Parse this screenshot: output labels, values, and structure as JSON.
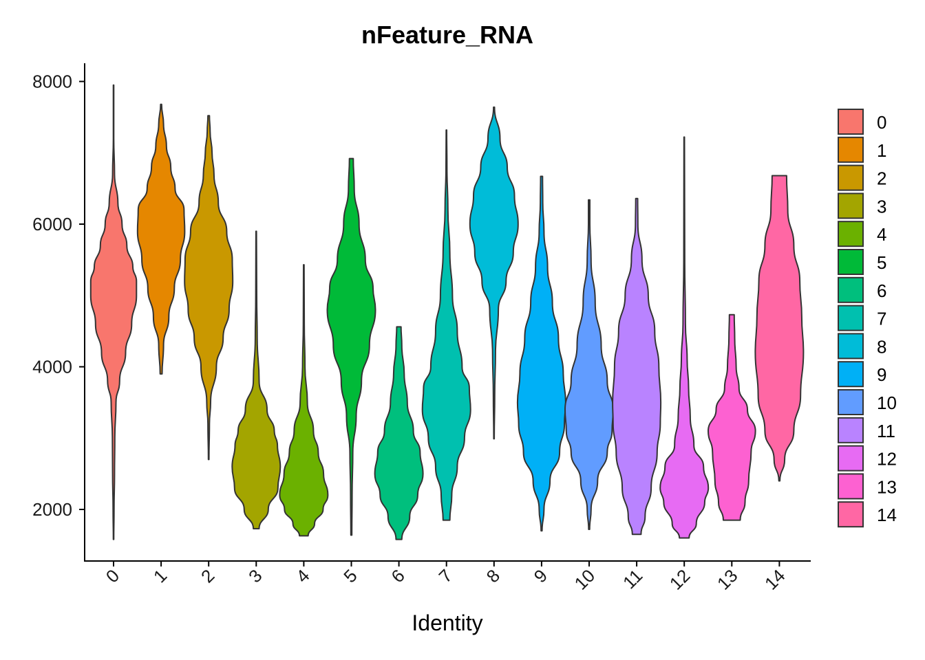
{
  "chart_data": {
    "type": "violin",
    "title": "nFeature_RNA",
    "xlabel": "Identity",
    "ylabel": "",
    "ylim": [
      1300,
      8250
    ],
    "yticks": [
      2000,
      4000,
      6000,
      8000
    ],
    "legend_position": "right",
    "categories": [
      "0",
      "1",
      "2",
      "3",
      "4",
      "5",
      "6",
      "7",
      "8",
      "9",
      "10",
      "11",
      "12",
      "13",
      "14"
    ],
    "series": [
      {
        "name": "0",
        "color": "#F8766D",
        "min": 1580,
        "max": 7950,
        "median": 5000,
        "profile": [
          [
            1580,
            0.01
          ],
          [
            2000,
            0.02
          ],
          [
            2500,
            0.04
          ],
          [
            3000,
            0.05
          ],
          [
            3500,
            0.1
          ],
          [
            3800,
            0.25
          ],
          [
            4200,
            0.5
          ],
          [
            4600,
            0.75
          ],
          [
            5000,
            0.95
          ],
          [
            5200,
            0.95
          ],
          [
            5400,
            0.8
          ],
          [
            5700,
            0.55
          ],
          [
            6000,
            0.35
          ],
          [
            6300,
            0.18
          ],
          [
            6700,
            0.04
          ],
          [
            7200,
            0.01
          ],
          [
            7950,
            0.01
          ]
        ]
      },
      {
        "name": "1",
        "color": "#E58700",
        "min": 3900,
        "max": 7680,
        "median": 5900,
        "profile": [
          [
            3900,
            0.04
          ],
          [
            4300,
            0.1
          ],
          [
            4700,
            0.32
          ],
          [
            5100,
            0.55
          ],
          [
            5500,
            0.8
          ],
          [
            5900,
            0.98
          ],
          [
            6200,
            0.95
          ],
          [
            6500,
            0.58
          ],
          [
            6800,
            0.4
          ],
          [
            7100,
            0.22
          ],
          [
            7400,
            0.1
          ],
          [
            7680,
            0.02
          ]
        ]
      },
      {
        "name": "2",
        "color": "#C99800",
        "min": 2700,
        "max": 7520,
        "median": 5300,
        "profile": [
          [
            2700,
            0.01
          ],
          [
            3200,
            0.03
          ],
          [
            3500,
            0.08
          ],
          [
            4000,
            0.32
          ],
          [
            4400,
            0.6
          ],
          [
            4800,
            0.85
          ],
          [
            5200,
            1.0
          ],
          [
            5500,
            0.98
          ],
          [
            5900,
            0.75
          ],
          [
            6300,
            0.4
          ],
          [
            6700,
            0.22
          ],
          [
            7000,
            0.14
          ],
          [
            7300,
            0.06
          ],
          [
            7520,
            0.03
          ]
        ]
      },
      {
        "name": "3",
        "color": "#A3A500",
        "min": 1730,
        "max": 5900,
        "median": 2600,
        "profile": [
          [
            1730,
            0.12
          ],
          [
            2000,
            0.5
          ],
          [
            2300,
            0.9
          ],
          [
            2600,
            1.0
          ],
          [
            2900,
            0.88
          ],
          [
            3100,
            0.75
          ],
          [
            3400,
            0.45
          ],
          [
            3800,
            0.12
          ],
          [
            4400,
            0.04
          ],
          [
            5000,
            0.02
          ],
          [
            5900,
            0.01
          ]
        ]
      },
      {
        "name": "4",
        "color": "#6BB100",
        "min": 1630,
        "max": 5430,
        "median": 2200,
        "profile": [
          [
            1630,
            0.18
          ],
          [
            1800,
            0.45
          ],
          [
            2000,
            0.8
          ],
          [
            2200,
            1.0
          ],
          [
            2500,
            0.82
          ],
          [
            2800,
            0.6
          ],
          [
            3100,
            0.4
          ],
          [
            3500,
            0.15
          ],
          [
            4000,
            0.05
          ],
          [
            4600,
            0.02
          ],
          [
            5430,
            0.01
          ]
        ]
      },
      {
        "name": "5",
        "color": "#00BA38",
        "min": 1640,
        "max": 6920,
        "median": 4800,
        "profile": [
          [
            1640,
            0.02
          ],
          [
            2200,
            0.03
          ],
          [
            2800,
            0.06
          ],
          [
            3300,
            0.2
          ],
          [
            3800,
            0.42
          ],
          [
            4300,
            0.75
          ],
          [
            4800,
            1.0
          ],
          [
            5100,
            0.9
          ],
          [
            5500,
            0.58
          ],
          [
            6000,
            0.32
          ],
          [
            6500,
            0.12
          ],
          [
            6920,
            0.08
          ]
        ]
      },
      {
        "name": "6",
        "color": "#00BF7D",
        "min": 1580,
        "max": 4560,
        "median": 2600,
        "profile": [
          [
            1580,
            0.12
          ],
          [
            1900,
            0.45
          ],
          [
            2200,
            0.78
          ],
          [
            2500,
            1.0
          ],
          [
            2800,
            0.88
          ],
          [
            3100,
            0.6
          ],
          [
            3500,
            0.35
          ],
          [
            3900,
            0.22
          ],
          [
            4300,
            0.12
          ],
          [
            4560,
            0.09
          ]
        ]
      },
      {
        "name": "7",
        "color": "#00C0AF",
        "min": 1850,
        "max": 7320,
        "median": 3500,
        "profile": [
          [
            1850,
            0.14
          ],
          [
            2200,
            0.22
          ],
          [
            2600,
            0.45
          ],
          [
            3000,
            0.75
          ],
          [
            3400,
            1.0
          ],
          [
            3700,
            0.95
          ],
          [
            4000,
            0.65
          ],
          [
            4500,
            0.45
          ],
          [
            5000,
            0.25
          ],
          [
            5600,
            0.14
          ],
          [
            6200,
            0.06
          ],
          [
            6800,
            0.02
          ],
          [
            7320,
            0.01
          ]
        ]
      },
      {
        "name": "8",
        "color": "#00BCD8",
        "min": 2990,
        "max": 7640,
        "median": 6000,
        "profile": [
          [
            2990,
            0.01
          ],
          [
            3600,
            0.03
          ],
          [
            4200,
            0.06
          ],
          [
            4800,
            0.18
          ],
          [
            5200,
            0.5
          ],
          [
            5600,
            0.8
          ],
          [
            6000,
            1.0
          ],
          [
            6400,
            0.85
          ],
          [
            6800,
            0.55
          ],
          [
            7200,
            0.25
          ],
          [
            7640,
            0.02
          ]
        ]
      },
      {
        "name": "9",
        "color": "#00B0F6",
        "min": 1700,
        "max": 6670,
        "median": 3500,
        "profile": [
          [
            1700,
            0.02
          ],
          [
            2000,
            0.1
          ],
          [
            2400,
            0.35
          ],
          [
            2800,
            0.75
          ],
          [
            3200,
            0.95
          ],
          [
            3500,
            1.0
          ],
          [
            3900,
            0.9
          ],
          [
            4400,
            0.7
          ],
          [
            4900,
            0.45
          ],
          [
            5400,
            0.25
          ],
          [
            5900,
            0.1
          ],
          [
            6300,
            0.05
          ],
          [
            6670,
            0.04
          ]
        ]
      },
      {
        "name": "10",
        "color": "#619CFF",
        "min": 1720,
        "max": 6340,
        "median": 3300,
        "profile": [
          [
            1720,
            0.02
          ],
          [
            2000,
            0.08
          ],
          [
            2400,
            0.35
          ],
          [
            2800,
            0.75
          ],
          [
            3100,
            0.95
          ],
          [
            3400,
            1.0
          ],
          [
            3800,
            0.75
          ],
          [
            4300,
            0.5
          ],
          [
            4900,
            0.25
          ],
          [
            5500,
            0.08
          ],
          [
            6000,
            0.03
          ],
          [
            6340,
            0.03
          ]
        ]
      },
      {
        "name": "11",
        "color": "#B983FF",
        "min": 1650,
        "max": 6360,
        "median": 3000,
        "profile": [
          [
            1650,
            0.18
          ],
          [
            1900,
            0.35
          ],
          [
            2300,
            0.6
          ],
          [
            2800,
            0.85
          ],
          [
            3200,
            0.98
          ],
          [
            3500,
            1.0
          ],
          [
            4000,
            0.92
          ],
          [
            4500,
            0.75
          ],
          [
            5000,
            0.48
          ],
          [
            5500,
            0.22
          ],
          [
            6000,
            0.05
          ],
          [
            6360,
            0.04
          ]
        ]
      },
      {
        "name": "12",
        "color": "#E76BF3",
        "min": 1600,
        "max": 7220,
        "median": 2300,
        "profile": [
          [
            1600,
            0.2
          ],
          [
            1800,
            0.5
          ],
          [
            2100,
            0.85
          ],
          [
            2300,
            1.0
          ],
          [
            2600,
            0.8
          ],
          [
            2900,
            0.4
          ],
          [
            3300,
            0.25
          ],
          [
            3700,
            0.18
          ],
          [
            4100,
            0.12
          ],
          [
            4600,
            0.05
          ],
          [
            5500,
            0.02
          ],
          [
            7220,
            0.01
          ]
        ]
      },
      {
        "name": "13",
        "color": "#FD61D1",
        "min": 1850,
        "max": 4730,
        "median": 3100,
        "profile": [
          [
            1850,
            0.35
          ],
          [
            2100,
            0.55
          ],
          [
            2400,
            0.7
          ],
          [
            2800,
            0.8
          ],
          [
            3100,
            0.98
          ],
          [
            3400,
            0.65
          ],
          [
            3700,
            0.3
          ],
          [
            4000,
            0.18
          ],
          [
            4400,
            0.12
          ],
          [
            4730,
            0.1
          ]
        ]
      },
      {
        "name": "14",
        "color": "#FF67A4",
        "min": 2400,
        "max": 6680,
        "median": 4300,
        "profile": [
          [
            2400,
            0.02
          ],
          [
            2700,
            0.22
          ],
          [
            3100,
            0.6
          ],
          [
            3600,
            0.88
          ],
          [
            4200,
            1.0
          ],
          [
            4700,
            0.93
          ],
          [
            5200,
            0.85
          ],
          [
            5700,
            0.6
          ],
          [
            6200,
            0.35
          ],
          [
            6680,
            0.3
          ]
        ]
      }
    ]
  }
}
